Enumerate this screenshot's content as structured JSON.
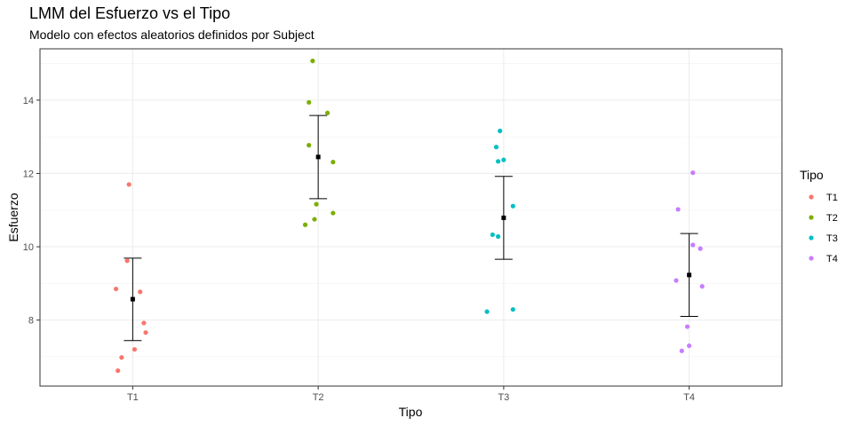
{
  "title": "LMM del Esfuerzo vs el Tipo",
  "subtitle": "Modelo con efectos aleatorios definidos por Subject",
  "chart_data": {
    "type": "scatter",
    "title": "LMM del Esfuerzo vs el Tipo",
    "subtitle": "Modelo con efectos aleatorios definidos por Subject",
    "xlabel": "Tipo",
    "ylabel": "Esfuerzo",
    "categories": [
      "T1",
      "T2",
      "T3",
      "T4"
    ],
    "ylim": [
      6.2,
      15.4
    ],
    "yticks": [
      8,
      10,
      12,
      14
    ],
    "grid": true,
    "legend": {
      "title": "Tipo",
      "position": "right"
    },
    "series": [
      {
        "name": "T1",
        "color": "#F8766D",
        "points": [
          [
            -0.09,
            8.85
          ],
          [
            -0.03,
            9.62
          ],
          [
            -0.02,
            11.7
          ],
          [
            0.04,
            8.77
          ],
          [
            0.06,
            7.92
          ],
          [
            0.07,
            7.66
          ],
          [
            0.01,
            7.2
          ],
          [
            -0.06,
            6.98
          ],
          [
            -0.08,
            6.62
          ]
        ]
      },
      {
        "name": "T2",
        "color": "#7CAE00",
        "points": [
          [
            -0.03,
            15.07
          ],
          [
            -0.05,
            13.94
          ],
          [
            0.05,
            13.65
          ],
          [
            -0.05,
            12.77
          ],
          [
            0.08,
            12.31
          ],
          [
            -0.01,
            11.16
          ],
          [
            0.08,
            10.92
          ],
          [
            -0.02,
            10.75
          ],
          [
            -0.07,
            10.6
          ]
        ]
      },
      {
        "name": "T3",
        "color": "#00BFC4",
        "points": [
          [
            -0.02,
            13.16
          ],
          [
            -0.04,
            12.72
          ],
          [
            -0.03,
            12.33
          ],
          [
            0.0,
            12.37
          ],
          [
            0.05,
            11.11
          ],
          [
            -0.06,
            10.33
          ],
          [
            -0.03,
            10.28
          ],
          [
            -0.09,
            8.23
          ],
          [
            0.05,
            8.29
          ]
        ]
      },
      {
        "name": "T4",
        "color": "#C77CFF",
        "points": [
          [
            0.02,
            12.02
          ],
          [
            -0.06,
            11.02
          ],
          [
            0.02,
            10.05
          ],
          [
            0.06,
            9.95
          ],
          [
            -0.07,
            9.08
          ],
          [
            0.07,
            8.92
          ],
          [
            -0.01,
            7.82
          ],
          [
            0.0,
            7.3
          ],
          [
            -0.04,
            7.16
          ]
        ]
      }
    ],
    "estimates": [
      {
        "category": "T1",
        "mean": 8.57,
        "lower": 7.44,
        "upper": 9.69
      },
      {
        "category": "T2",
        "mean": 12.45,
        "lower": 11.31,
        "upper": 13.58
      },
      {
        "category": "T3",
        "mean": 10.79,
        "lower": 9.66,
        "upper": 11.92
      },
      {
        "category": "T4",
        "mean": 9.23,
        "lower": 8.1,
        "upper": 10.36
      }
    ]
  }
}
